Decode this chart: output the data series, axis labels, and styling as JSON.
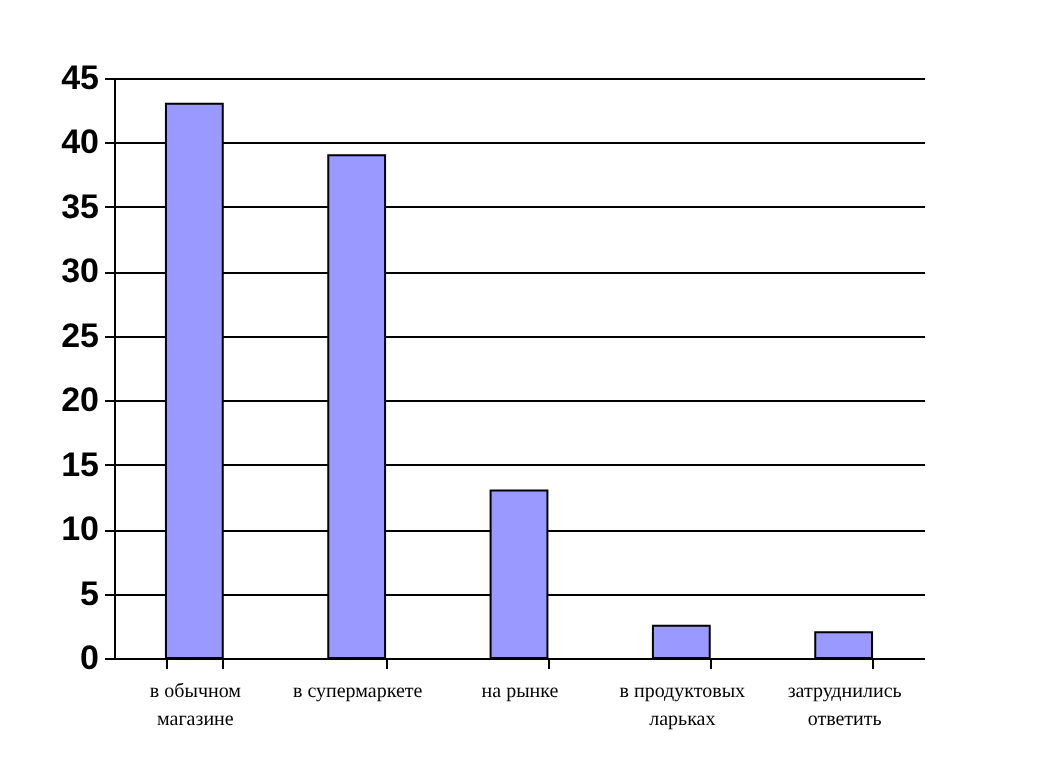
{
  "chart_data": {
    "type": "bar",
    "categories": [
      "в обычном магазине",
      "в супермаркете",
      "на рынке",
      "в продуктовых ларьках",
      "затруднились ответить"
    ],
    "values": [
      43,
      39,
      13,
      2.5,
      2
    ],
    "color": "#9999ff",
    "ylim": [
      0,
      45
    ],
    "yticks": [
      0,
      5,
      10,
      15,
      20,
      25,
      30,
      35,
      40,
      45
    ],
    "grid": "y"
  }
}
